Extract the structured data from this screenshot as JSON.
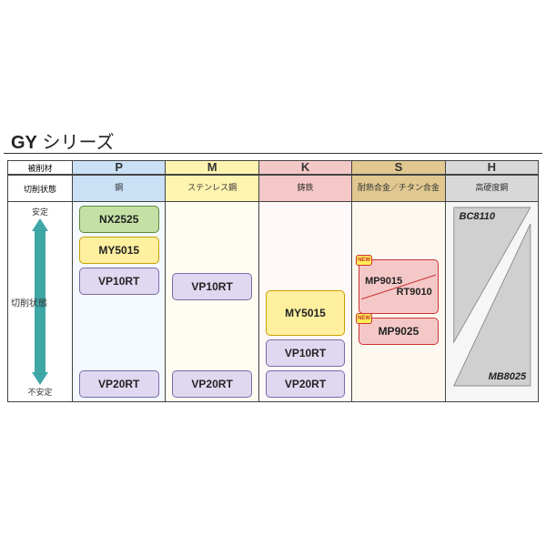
{
  "title_prefix": "GY",
  "title_suffix": " シリーズ",
  "row_labels": {
    "material": "被削材",
    "state": "切削状態"
  },
  "state_axis": {
    "top": "安定",
    "mid": "切削状態",
    "bottom": "不安定",
    "arrow_color": "#3fa6a6"
  },
  "columns": [
    {
      "key": "P",
      "label": "P",
      "sub": "鋼",
      "header_bg": "#c9e0f5",
      "body_bg": "#f4f9ff",
      "items": [
        {
          "type": "chip",
          "text": "NX2525",
          "style": "green"
        },
        {
          "type": "chip",
          "text": "MY5015",
          "style": "yellow"
        },
        {
          "type": "chip",
          "text": "VP10RT",
          "style": "purple"
        },
        {
          "type": "spacer"
        },
        {
          "type": "chip",
          "text": "VP20RT",
          "style": "purple"
        }
      ]
    },
    {
      "key": "M",
      "label": "M",
      "sub": "ステンレス鋼",
      "header_bg": "#fff3b0",
      "body_bg": "#fffdf2",
      "items": [
        {
          "type": "spacer"
        },
        {
          "type": "chip",
          "text": "VP10RT",
          "style": "purple"
        },
        {
          "type": "spacer"
        },
        {
          "type": "chip",
          "text": "VP20RT",
          "style": "purple"
        }
      ]
    },
    {
      "key": "K",
      "label": "K",
      "sub": "鋳鉄",
      "header_bg": "#f5c8c8",
      "body_bg": "#fff8f8",
      "items": [
        {
          "type": "spacer"
        },
        {
          "type": "chip",
          "text": "MY5015",
          "style": "yellow",
          "tall": true
        },
        {
          "type": "chip",
          "text": "VP10RT",
          "style": "purple"
        },
        {
          "type": "chip",
          "text": "VP20RT",
          "style": "purple"
        }
      ]
    },
    {
      "key": "S",
      "label": "S",
      "sub": "耐熱合金／チタン合金",
      "header_bg": "#e0c890",
      "body_bg": "#fdf9f0",
      "items": [
        {
          "type": "spacer"
        },
        {
          "type": "split",
          "top": "MP9015",
          "bottom": "RT9010",
          "style": "red",
          "new": true
        },
        {
          "type": "chip",
          "text": "MP9025",
          "style": "red",
          "new": true
        },
        {
          "type": "spacer"
        }
      ]
    },
    {
      "key": "H",
      "label": "H",
      "sub": "高硬度鋼",
      "header_bg": "#d8d8d8",
      "body_bg": "#f6f6f6",
      "items": [
        {
          "type": "triangles",
          "top": "BC8110",
          "bottom": "MB8025",
          "fill": "#d0d0d0",
          "stroke": "#888"
        }
      ]
    }
  ],
  "colors": {
    "border": "#444444",
    "text": "#222222"
  },
  "new_label": "NEW"
}
